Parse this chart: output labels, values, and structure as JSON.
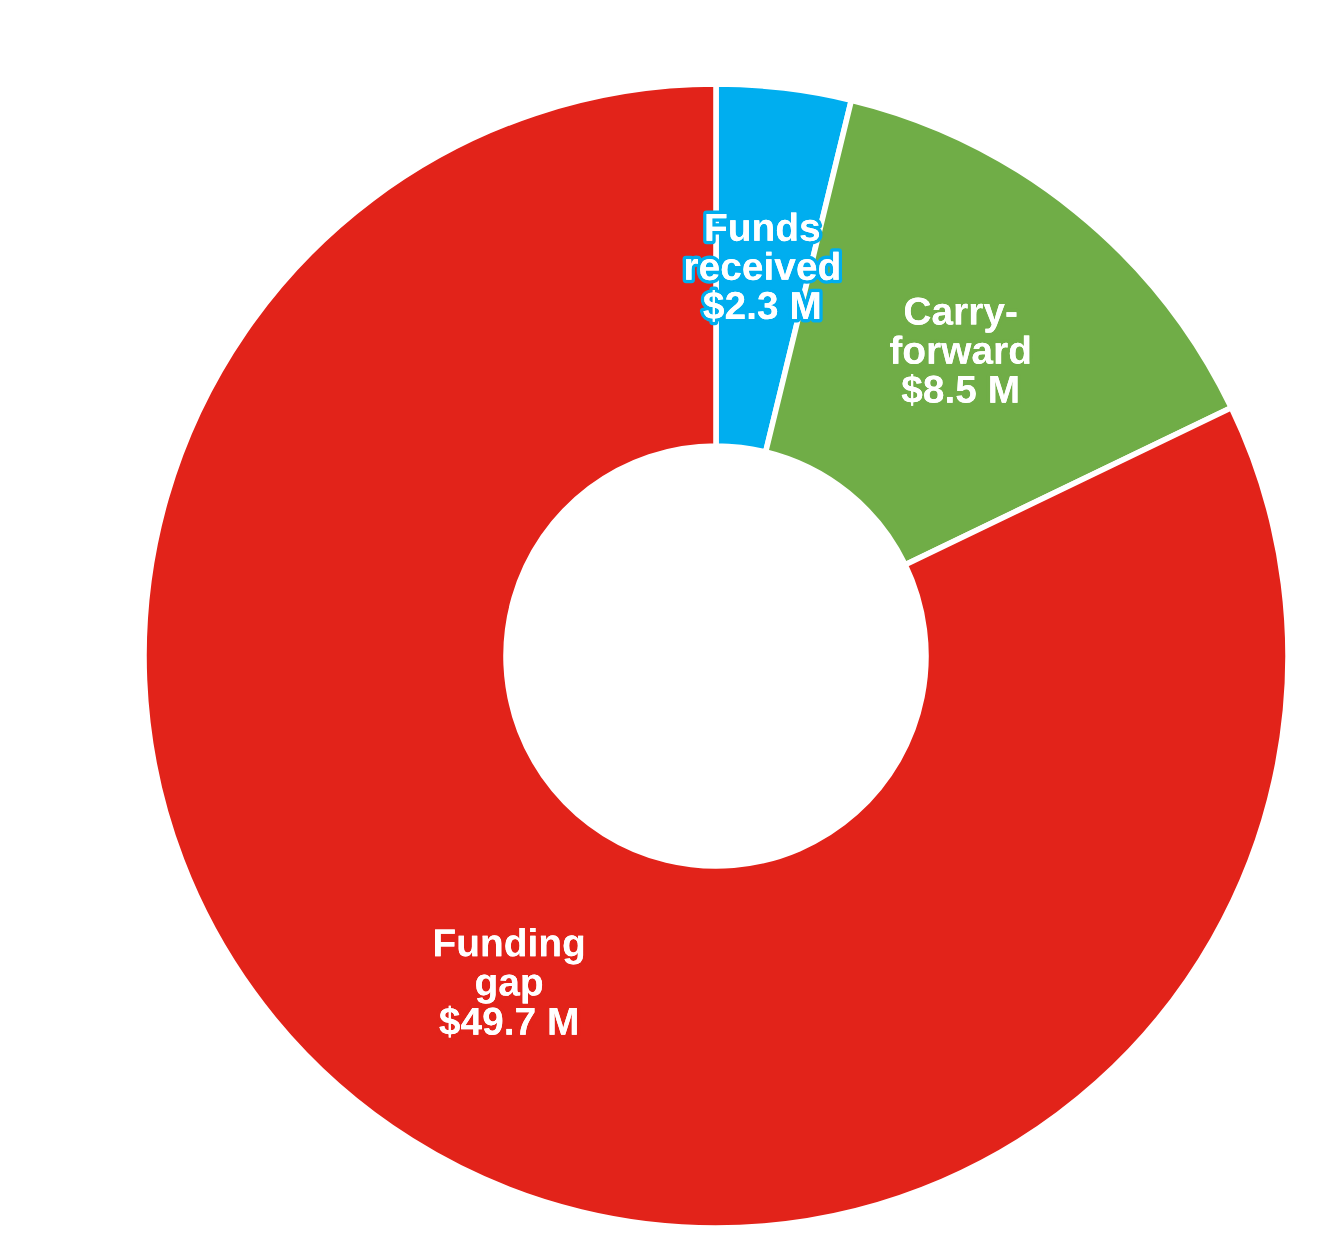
{
  "chart_data": {
    "type": "donut",
    "categories": [
      "Funds\nreceived",
      "Carry-\nforward",
      "Funding\ngap"
    ],
    "values": [
      2.3,
      8.5,
      49.7
    ],
    "value_labels": [
      "$2.3 M",
      "$8.5 M",
      "$49.7 M"
    ],
    "colors": [
      "#00aeef",
      "#70ad47",
      "#e2231a"
    ],
    "legend": false
  }
}
